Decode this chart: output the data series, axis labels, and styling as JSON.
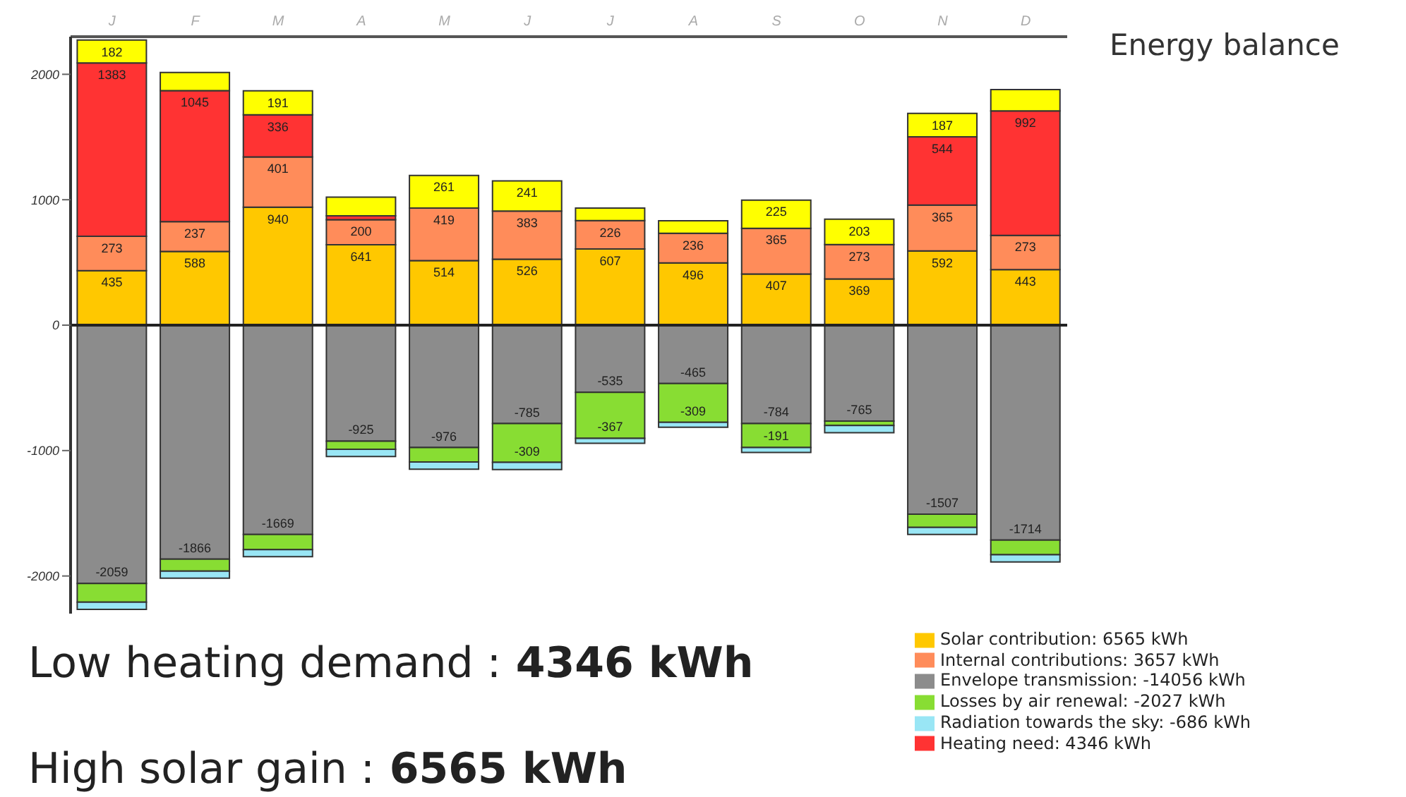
{
  "chart_data": {
    "type": "bar",
    "stacked": true,
    "title": "Energy balance",
    "categories": [
      "J",
      "F",
      "M",
      "A",
      "M",
      "J",
      "J",
      "A",
      "S",
      "O",
      "N",
      "D"
    ],
    "series": [
      {
        "name": "Solar contribution: 6565 kWh",
        "color": "#ffc800",
        "values": [
          435,
          588,
          940,
          641,
          514,
          526,
          607,
          496,
          407,
          369,
          592,
          443
        ],
        "value_labels": [
          "435",
          "588",
          "940",
          "641",
          "514",
          "526",
          "607",
          "496",
          "407",
          "369",
          "592",
          "443"
        ]
      },
      {
        "name": "Internal contributions: 3657 kWh",
        "color": "#ff8c5a",
        "values": [
          273,
          237,
          401,
          200,
          419,
          383,
          226,
          236,
          365,
          273,
          365,
          273
        ],
        "value_labels": [
          "273",
          "237",
          "401",
          "200",
          "419",
          "383",
          "226",
          "236",
          "365",
          "273",
          "365",
          "273"
        ]
      },
      {
        "name": "Envelope transmission: -14056 kWh",
        "color": "#8c8c8c",
        "values": [
          -2059,
          -1866,
          -1669,
          -925,
          -976,
          -785,
          -535,
          -465,
          -784,
          -765,
          -1507,
          -1714
        ],
        "value_labels": [
          "-2059",
          "-1866",
          "-1669",
          "-925",
          "-976",
          "-785",
          "-535",
          "-465",
          "-784",
          "-765",
          "-1507",
          "-1714"
        ]
      },
      {
        "name": "Losses by air renewal: -2027 kWh",
        "color": "#88dd33",
        "values": [
          -150,
          -95,
          -120,
          -65,
          -115,
          -309,
          -367,
          -309,
          -191,
          -35,
          -105,
          -117
        ],
        "value_labels": [
          null,
          null,
          null,
          null,
          null,
          "-309",
          "-367",
          "-309",
          "-191",
          null,
          null,
          null
        ]
      },
      {
        "name": "Radiation towards the sky: -686 kWh",
        "color": "#99e6f5",
        "values": [
          -57,
          -57,
          -57,
          -57,
          -57,
          -57,
          -40,
          -40,
          -40,
          -57,
          -57,
          -57
        ]
      },
      {
        "name": "Heating need: 4346 kWh",
        "color": "#ff3333",
        "values": [
          1383,
          1045,
          336,
          30,
          null,
          null,
          null,
          null,
          null,
          null,
          544,
          992
        ],
        "value_labels": [
          "1383",
          "1045",
          "336",
          null,
          null,
          null,
          null,
          null,
          null,
          null,
          "544",
          "992"
        ]
      },
      {
        "color": "#ffff00",
        "values": [
          182,
          145,
          191,
          150,
          261,
          241,
          100,
          100,
          225,
          203,
          187,
          170
        ],
        "value_labels": [
          "182",
          null,
          "191",
          null,
          "261",
          "241",
          null,
          null,
          "225",
          "203",
          "187",
          null
        ]
      }
    ],
    "ylim": [
      -2300,
      2300
    ],
    "yticks": [
      -2000,
      -1000,
      0,
      1000,
      2000
    ],
    "legend": "bottom right",
    "annotations": [
      "Low heating demand : 4346 kWh",
      "High solar gain : 6565 kWh"
    ]
  }
}
